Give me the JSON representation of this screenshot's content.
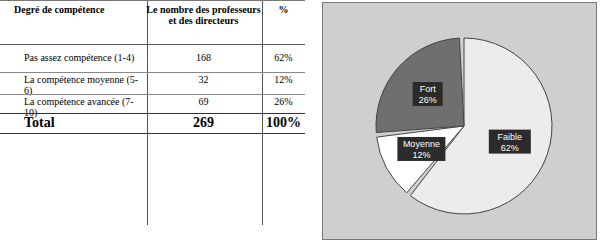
{
  "table": {
    "header": [
      "Degré de compétence",
      "Le nombre des professeurs et des directeurs",
      "%"
    ],
    "rows": [
      [
        "Pas assez compétence (1-4)",
        "168",
        "62%"
      ],
      [
        "La compétence moyenne (5-6)",
        "32",
        "12%"
      ],
      [
        "La compétence avancée (7-10)",
        "69",
        "26%"
      ],
      [
        "Total",
        "269",
        "100%"
      ]
    ]
  },
  "chart_data": {
    "type": "pie",
    "categories": [
      "Faible",
      "Moyenne",
      "Fort"
    ],
    "values": [
      62,
      12,
      26
    ],
    "value_labels": [
      "62%",
      "12%",
      "26%"
    ],
    "colors": [
      "#ececec",
      "#ffffff",
      "#6f6f6f"
    ],
    "data_labels": true
  }
}
